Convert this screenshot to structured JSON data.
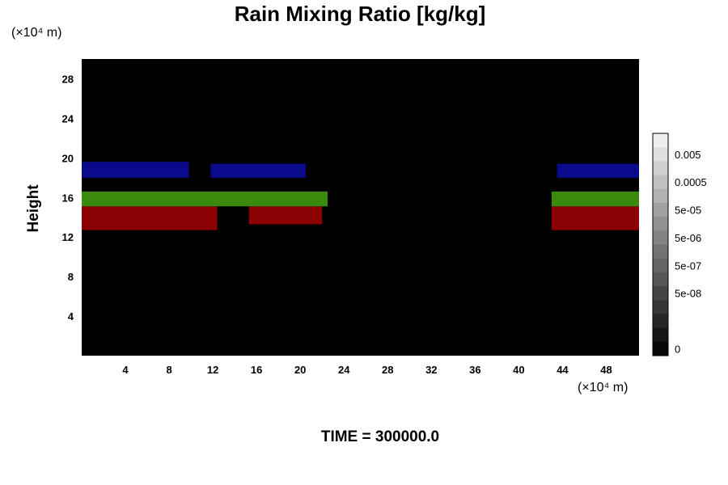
{
  "chart_data": {
    "type": "heatmap",
    "title": "Rain Mixing Ratio [kg/kg]",
    "xlabel": "",
    "ylabel": "Height",
    "x_unit": "(×10⁴ m)",
    "y_unit": "(×10⁴ m)",
    "footer": "TIME = 300000.0",
    "xlim": [
      0,
      51
    ],
    "ylim": [
      0,
      30
    ],
    "x_ticks": [
      "4",
      "8",
      "12",
      "16",
      "20",
      "24",
      "28",
      "32",
      "36",
      "40",
      "44",
      "48"
    ],
    "y_ticks": [
      "4",
      "8",
      "12",
      "16",
      "20",
      "24",
      "28"
    ],
    "grid": false,
    "background_color": "#000000",
    "colorbar": {
      "labels": [
        "0.005",
        "0.0005",
        "5e-05",
        "5e-06",
        "5e-07",
        "5e-08",
        "0"
      ],
      "levels": 16
    },
    "regions": [
      {
        "color": "#8b0000",
        "x": [
          0,
          12.4
        ],
        "y": [
          12.7,
          15.1
        ]
      },
      {
        "color": "#8b0000",
        "x": [
          15.3,
          22
        ],
        "y": [
          13.3,
          15.1
        ]
      },
      {
        "color": "#8b0000",
        "x": [
          43,
          51
        ],
        "y": [
          12.7,
          15.1
        ]
      },
      {
        "color": "#3a8a0e",
        "x": [
          0,
          22.5
        ],
        "y": [
          15.1,
          16.6
        ]
      },
      {
        "color": "#3a8a0e",
        "x": [
          43,
          51
        ],
        "y": [
          15.1,
          16.6
        ]
      },
      {
        "color": "#0a0a8c",
        "x": [
          0,
          9.8
        ],
        "y": [
          18.0,
          19.6
        ]
      },
      {
        "color": "#0a0a8c",
        "x": [
          11.8,
          20.5
        ],
        "y": [
          18.0,
          19.4
        ]
      },
      {
        "color": "#0a0a8c",
        "x": [
          43.5,
          51
        ],
        "y": [
          18.0,
          19.4
        ]
      }
    ]
  }
}
